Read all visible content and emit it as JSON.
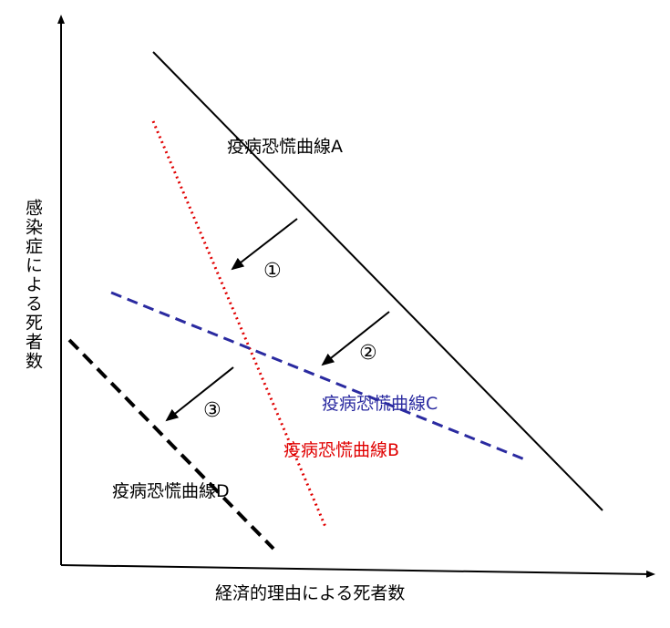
{
  "axes": {
    "x_label": "経済的理由による死者数",
    "y_label": "感染症による死者数"
  },
  "curves": {
    "a": {
      "label": "疫病恐慌曲線A",
      "color": "#000000",
      "style": "solid"
    },
    "b": {
      "label": "疫病恐慌曲線B",
      "color": "#e00000",
      "style": "dotted"
    },
    "c": {
      "label": "疫病恐慌曲線C",
      "color": "#2a2aa0",
      "style": "dashed"
    },
    "d": {
      "label": "疫病恐慌曲線D",
      "color": "#000000",
      "style": "dashed"
    }
  },
  "arrows": {
    "one": {
      "marker": "①"
    },
    "two": {
      "marker": "②"
    },
    "three": {
      "marker": "③"
    }
  }
}
